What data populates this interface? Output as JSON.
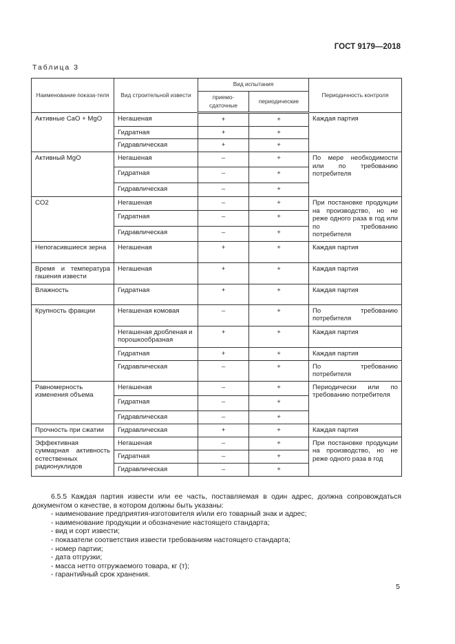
{
  "header": "ГОСТ 9179—2018",
  "caption": "Таблица 3",
  "table": {
    "headers": {
      "name": "Наименование показа-теля",
      "kind": "Вид строительной извести",
      "test": "Вид испытания",
      "accept": "приемо-сдаточные",
      "periodic": "периодические",
      "period": "Периодичность контроля"
    },
    "groups": [
      {
        "name": "Активные CaO + MgO",
        "period": "Каждая партия",
        "rows": [
          [
            "Негашеная",
            "+",
            "+"
          ],
          [
            "Гидратная",
            "+",
            "+"
          ],
          [
            "Гидравлическая",
            "+",
            "+"
          ]
        ],
        "h": [
          20,
          19,
          20
        ]
      },
      {
        "name": "Активный MgO",
        "period": "По мере необходимости или по требованию потребителя",
        "rows": [
          [
            "Негашеная",
            "–",
            "+"
          ],
          [
            "Гидратная",
            "–",
            "+"
          ],
          [
            "Гидравлическая",
            "–",
            "+"
          ]
        ],
        "h": [
          23,
          24,
          21
        ]
      },
      {
        "name": "CO2",
        "period": "При постановке продукции на производство, но не реже одного раза в год или по требованию потребителя",
        "rows": [
          [
            "Негашеная",
            "–",
            "+"
          ],
          [
            "Гидратная",
            "–",
            "+"
          ],
          [
            "Гидравлическая",
            "–",
            "+"
          ]
        ],
        "h": [
          21,
          23,
          22
        ]
      },
      {
        "name": "Непогасившиеся зерна",
        "period": "Каждая партия",
        "rows": [
          [
            "Негашеная",
            "+",
            "+"
          ]
        ],
        "h": [
          32
        ]
      },
      {
        "name": "Время и температура гашения извести",
        "period": "Каждая партия",
        "rows": [
          [
            "Негашеная",
            "+",
            "+"
          ]
        ],
        "h": [
          32
        ]
      },
      {
        "name": "Влажность",
        "period": "Каждая партия",
        "rows": [
          [
            "Гидратная",
            "+",
            "+"
          ]
        ],
        "h": [
          31
        ]
      },
      {
        "name": "Крупность фракции",
        "period": "",
        "rows": [
          [
            "Негашеная комовая",
            "–",
            "+",
            "По требованию потребителя"
          ],
          [
            "Негашеная дробленая и порошкообразная",
            "+",
            "+",
            "Каждая партия"
          ],
          [
            "Гидратная",
            "+",
            "+",
            "Каждая партия"
          ],
          [
            "Гидравлическая",
            "–",
            "+",
            "По требованию потребителя"
          ]
        ],
        "h": [
          32,
          32,
          20,
          31
        ]
      },
      {
        "name": "Равномерность изменения объема",
        "period": "Периодически или по требованию потребителя",
        "rows": [
          [
            "Негашеная",
            "–",
            "+"
          ],
          [
            "Гидратная",
            "–",
            "+"
          ],
          [
            "Гидравлическая",
            "–",
            "+"
          ]
        ],
        "h": [
          22,
          23,
          20
        ]
      },
      {
        "name": "Прочность при сжатии",
        "period": "Каждая партия",
        "rows": [
          [
            "Гидравлическая",
            "+",
            "+"
          ]
        ],
        "h": [
          20
        ]
      },
      {
        "name": "Эффективная суммарная активность естественных радионуклидов",
        "period": "При постановке продукции на производство, но не реже одного раза в год",
        "rows": [
          [
            "Негашеная",
            "–",
            "+"
          ],
          [
            "Гидратная",
            "–",
            "+"
          ],
          [
            "Гидравлическая",
            "–",
            "+"
          ]
        ],
        "h": [
          20,
          20,
          20
        ]
      }
    ]
  },
  "paragraph": "6.5.5 Каждая партия извести или ее часть, поставляемая в один адрес, должна сопровождаться документом о качестве, в котором должны быть указаны:",
  "list": [
    "- наименование предприятия-изготовителя и/или его товарный знак и адрес;",
    "- наименование продукции и обозначение настоящего стандарта;",
    "- вид и сорт извести;",
    "- показатели соответствия извести требованиям настоящего стандарта;",
    "- номер партии;",
    "- дата отгрузки;",
    "- масса нетто отгружаемого товара, кг (т);",
    "- гарантийный срок хранения."
  ],
  "page_number": "5"
}
